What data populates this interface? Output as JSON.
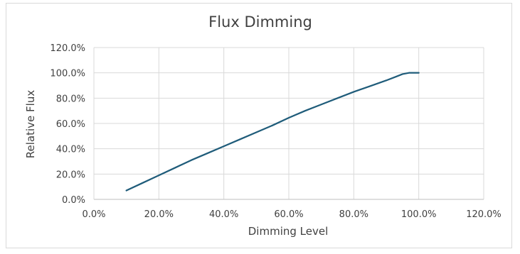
{
  "chart_data": {
    "type": "line",
    "title": "Flux Dimming",
    "xlabel": "Dimming Level",
    "ylabel": "Relative Flux",
    "xlim": [
      0,
      120
    ],
    "ylim": [
      0,
      120
    ],
    "x_ticks": [
      "0.0%",
      "20.0%",
      "40.0%",
      "60.0%",
      "80.0%",
      "100.0%",
      "120.0%"
    ],
    "y_ticks": [
      "0.0%",
      "20.0%",
      "40.0%",
      "60.0%",
      "80.0%",
      "100.0%",
      "120.0%"
    ],
    "grid": true,
    "series": [
      {
        "color": "#1f5c7a",
        "x": [
          10,
          15,
          20,
          25,
          30,
          35,
          40,
          45,
          50,
          55,
          60,
          65,
          70,
          75,
          80,
          85,
          90,
          93,
          95,
          97,
          100
        ],
        "y": [
          7,
          13,
          19,
          25,
          31,
          36.5,
          42,
          47.5,
          53,
          58.5,
          64.5,
          70,
          75,
          80,
          85,
          89.5,
          94,
          97,
          99,
          100,
          100
        ]
      }
    ]
  }
}
